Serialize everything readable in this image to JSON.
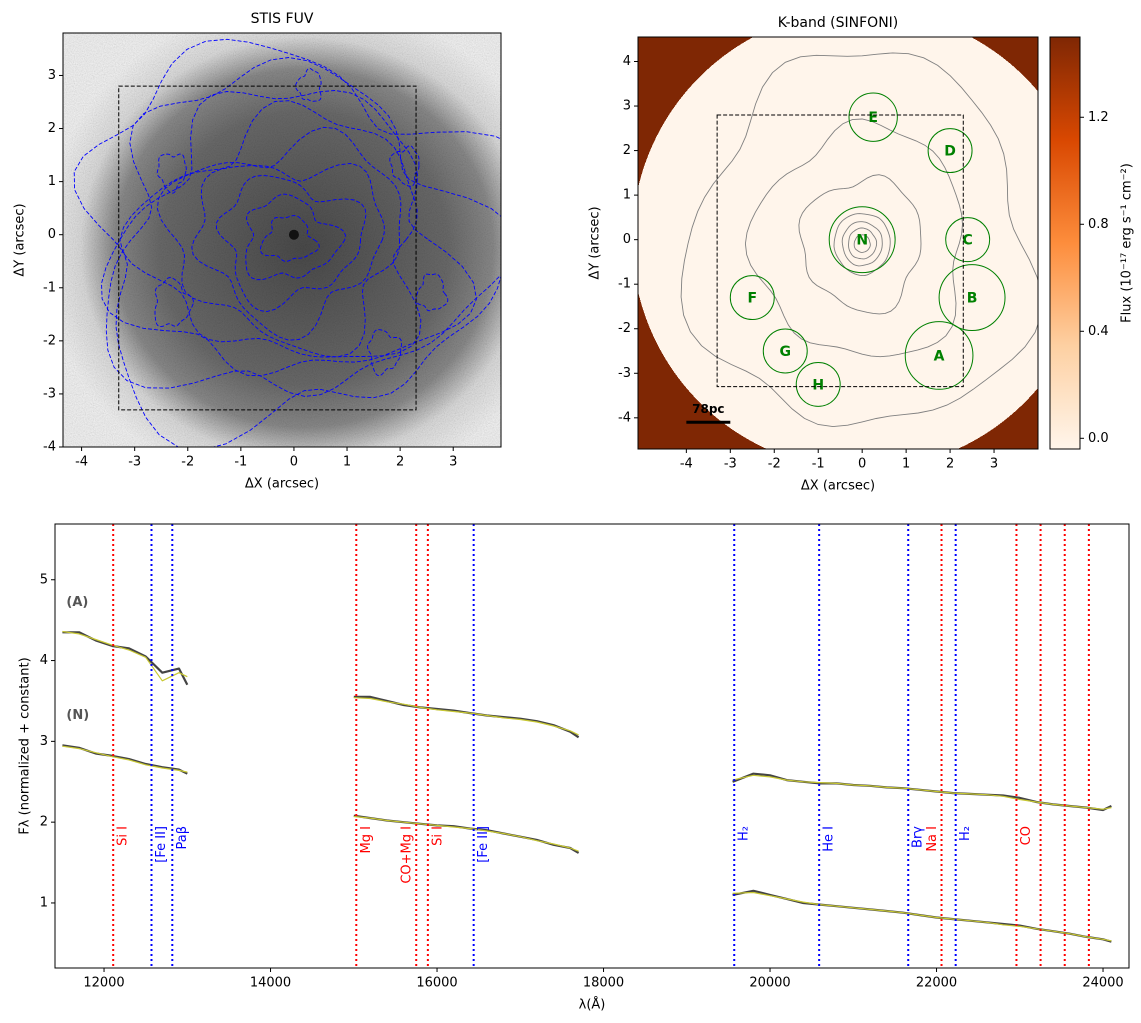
{
  "chart_data": [
    {
      "type": "image",
      "title": "STIS FUV",
      "xlabel": "ΔX (arcsec)",
      "ylabel": "ΔY (arcsec)",
      "xlim": [
        -4.35,
        3.9
      ],
      "ylim": [
        -4,
        3.8
      ],
      "xticks": [
        -4,
        -3,
        -2,
        -1,
        0,
        1,
        2,
        3
      ],
      "yticks": [
        -4,
        -3,
        -2,
        -1,
        0,
        1,
        2,
        3
      ],
      "cmap": "gray",
      "contour_color": "blue",
      "box": {
        "x": [
          -3.3,
          2.3
        ],
        "y": [
          -3.3,
          2.8
        ]
      }
    },
    {
      "type": "image",
      "title": "K-band (SINFONI)",
      "xlabel": "ΔX (arcsec)",
      "ylabel": "ΔY (arcsec)",
      "xlim": [
        -5.1,
        4.0
      ],
      "ylim": [
        -4.7,
        4.55
      ],
      "xticks": [
        -4,
        -3,
        -2,
        -1,
        0,
        1,
        2,
        3
      ],
      "yticks": [
        -4,
        -3,
        -2,
        -1,
        0,
        1,
        2,
        3,
        4
      ],
      "cmap": [
        "#fff5eb",
        "#fdd0a2",
        "#fd8d3c",
        "#d94801",
        "#7f2704"
      ],
      "contour_color": "gray",
      "box": {
        "x": [
          -3.3,
          2.3
        ],
        "y": [
          -3.3,
          2.8
        ]
      },
      "regions": [
        {
          "label": "N",
          "x": 0,
          "y": 0,
          "r": 0.75
        },
        {
          "label": "E",
          "x": 0.25,
          "y": 2.75,
          "r": 0.55
        },
        {
          "label": "D",
          "x": 2.0,
          "y": 2.0,
          "r": 0.5
        },
        {
          "label": "C",
          "x": 2.4,
          "y": 0,
          "r": 0.5
        },
        {
          "label": "B",
          "x": 2.5,
          "y": -1.3,
          "r": 0.75
        },
        {
          "label": "A",
          "x": 1.75,
          "y": -2.6,
          "r": 0.77
        },
        {
          "label": "F",
          "x": -2.5,
          "y": -1.3,
          "r": 0.5
        },
        {
          "label": "G",
          "x": -1.75,
          "y": -2.5,
          "r": 0.5
        },
        {
          "label": "H",
          "x": -1.0,
          "y": -3.25,
          "r": 0.5
        }
      ],
      "region_color": "green",
      "scalebar": {
        "label": "78pc",
        "x": [
          -4,
          -3
        ],
        "y": -4.1
      },
      "colorbar": {
        "label": "Flux (10⁻¹⁷ erg s⁻¹ cm⁻²)",
        "lim": [
          -0.04,
          1.5
        ],
        "ticks": [
          {
            "value": 0,
            "label": "0.0"
          },
          {
            "value": 0.4,
            "label": "0.4"
          },
          {
            "value": 0.8,
            "label": "0.8"
          },
          {
            "value": 1.2,
            "label": "1.2"
          }
        ]
      }
    },
    {
      "type": "line",
      "xlabel": "λ(Å)",
      "ylabel": "Fλ (normalized + constant)",
      "xlim": [
        11411,
        24312
      ],
      "ylim": [
        0.195,
        5.69
      ],
      "xticks": [
        12000,
        14000,
        16000,
        18000,
        20000,
        22000,
        24000
      ],
      "yticks": [
        1,
        2,
        3,
        4,
        5
      ],
      "x": [
        11500,
        11700,
        11900,
        12100,
        12300,
        12500,
        12700,
        12900,
        13000,
        14000,
        15000,
        15200,
        15400,
        15600,
        15800,
        16000,
        16200,
        16400,
        16600,
        16800,
        17000,
        17200,
        17400,
        17600,
        17700,
        18500,
        19550,
        19800,
        20000,
        20200,
        20400,
        20600,
        20800,
        21000,
        21200,
        21400,
        21600,
        21800,
        22000,
        22200,
        22400,
        22600,
        22800,
        23000,
        23200,
        23400,
        23600,
        23800,
        24000,
        24100
      ],
      "series": [
        {
          "name": "(A)",
          "color": "#444444",
          "values": [
            4.35,
            4.35,
            4.25,
            4.18,
            4.15,
            4.05,
            3.85,
            3.9,
            3.7,
            null,
            3.55,
            3.55,
            3.5,
            3.45,
            3.42,
            3.4,
            3.38,
            3.35,
            3.32,
            3.3,
            3.28,
            3.25,
            3.2,
            3.12,
            3.05,
            null,
            2.5,
            2.6,
            2.58,
            2.52,
            2.5,
            2.48,
            2.48,
            2.46,
            2.45,
            2.43,
            2.42,
            2.4,
            2.38,
            2.36,
            2.35,
            2.34,
            2.33,
            2.3,
            2.25,
            2.22,
            2.2,
            2.18,
            2.15,
            2.2
          ]
        },
        {
          "color": "#c8c832",
          "values": [
            4.36,
            4.33,
            4.26,
            4.19,
            4.13,
            4.04,
            3.75,
            3.85,
            3.8,
            null,
            3.54,
            3.53,
            3.49,
            3.46,
            3.42,
            3.39,
            3.37,
            3.35,
            3.32,
            3.29,
            3.27,
            3.24,
            3.19,
            3.13,
            3.08,
            null,
            2.52,
            2.58,
            2.56,
            2.52,
            2.5,
            2.49,
            2.48,
            2.46,
            2.45,
            2.43,
            2.42,
            2.4,
            2.38,
            2.36,
            2.35,
            2.34,
            2.32,
            2.28,
            2.25,
            2.22,
            2.2,
            2.18,
            2.16,
            2.18
          ]
        },
        {
          "name": "(N)",
          "color": "#444444",
          "values": [
            2.95,
            2.92,
            2.85,
            2.82,
            2.78,
            2.72,
            2.68,
            2.65,
            2.6,
            null,
            2.08,
            2.05,
            2.02,
            2.0,
            1.98,
            1.96,
            1.95,
            1.92,
            1.9,
            1.86,
            1.82,
            1.78,
            1.72,
            1.68,
            1.62,
            null,
            1.1,
            1.15,
            1.1,
            1.05,
            1.0,
            0.98,
            0.96,
            0.94,
            0.92,
            0.9,
            0.88,
            0.85,
            0.82,
            0.8,
            0.78,
            0.76,
            0.74,
            0.72,
            0.68,
            0.65,
            0.62,
            0.58,
            0.55,
            0.52
          ]
        },
        {
          "color": "#c8c832",
          "values": [
            2.94,
            2.91,
            2.86,
            2.81,
            2.77,
            2.71,
            2.67,
            2.64,
            2.62,
            null,
            2.07,
            2.05,
            2.02,
            2.0,
            1.98,
            1.96,
            1.94,
            1.92,
            1.89,
            1.86,
            1.82,
            1.77,
            1.73,
            1.68,
            1.64,
            null,
            1.12,
            1.13,
            1.09,
            1.05,
            1.01,
            0.98,
            0.96,
            0.94,
            0.92,
            0.9,
            0.88,
            0.85,
            0.82,
            0.8,
            0.78,
            0.76,
            0.73,
            0.71,
            0.68,
            0.65,
            0.62,
            0.58,
            0.55,
            0.53
          ]
        }
      ],
      "lines": [
        {
          "x": 12110,
          "label": "Si I",
          "color": "red"
        },
        {
          "x": 12570,
          "label": "[Fe II]",
          "color": "blue"
        },
        {
          "x": 12820,
          "label": "Paβ",
          "color": "blue"
        },
        {
          "x": 15030,
          "label": "Mg I",
          "color": "red"
        },
        {
          "x": 15750,
          "label": "CO+Mg I",
          "color": "red"
        },
        {
          "x": 15890,
          "label": "Si I",
          "color": "red"
        },
        {
          "x": 16440,
          "label": "[Fe II]",
          "color": "blue"
        },
        {
          "x": 19570,
          "label": "H₂",
          "color": "blue"
        },
        {
          "x": 20590,
          "label": "He I",
          "color": "blue"
        },
        {
          "x": 21660,
          "label": "Brγ",
          "color": "blue"
        },
        {
          "x": 22060,
          "label": "Na I",
          "color": "red"
        },
        {
          "x": 22230,
          "label": "H₂",
          "color": "blue"
        },
        {
          "x": 22960,
          "label": "CO",
          "color": "red"
        },
        {
          "x": 23250,
          "color": "red"
        },
        {
          "x": 23540,
          "color": "red"
        },
        {
          "x": 23830,
          "color": "red"
        }
      ]
    }
  ]
}
